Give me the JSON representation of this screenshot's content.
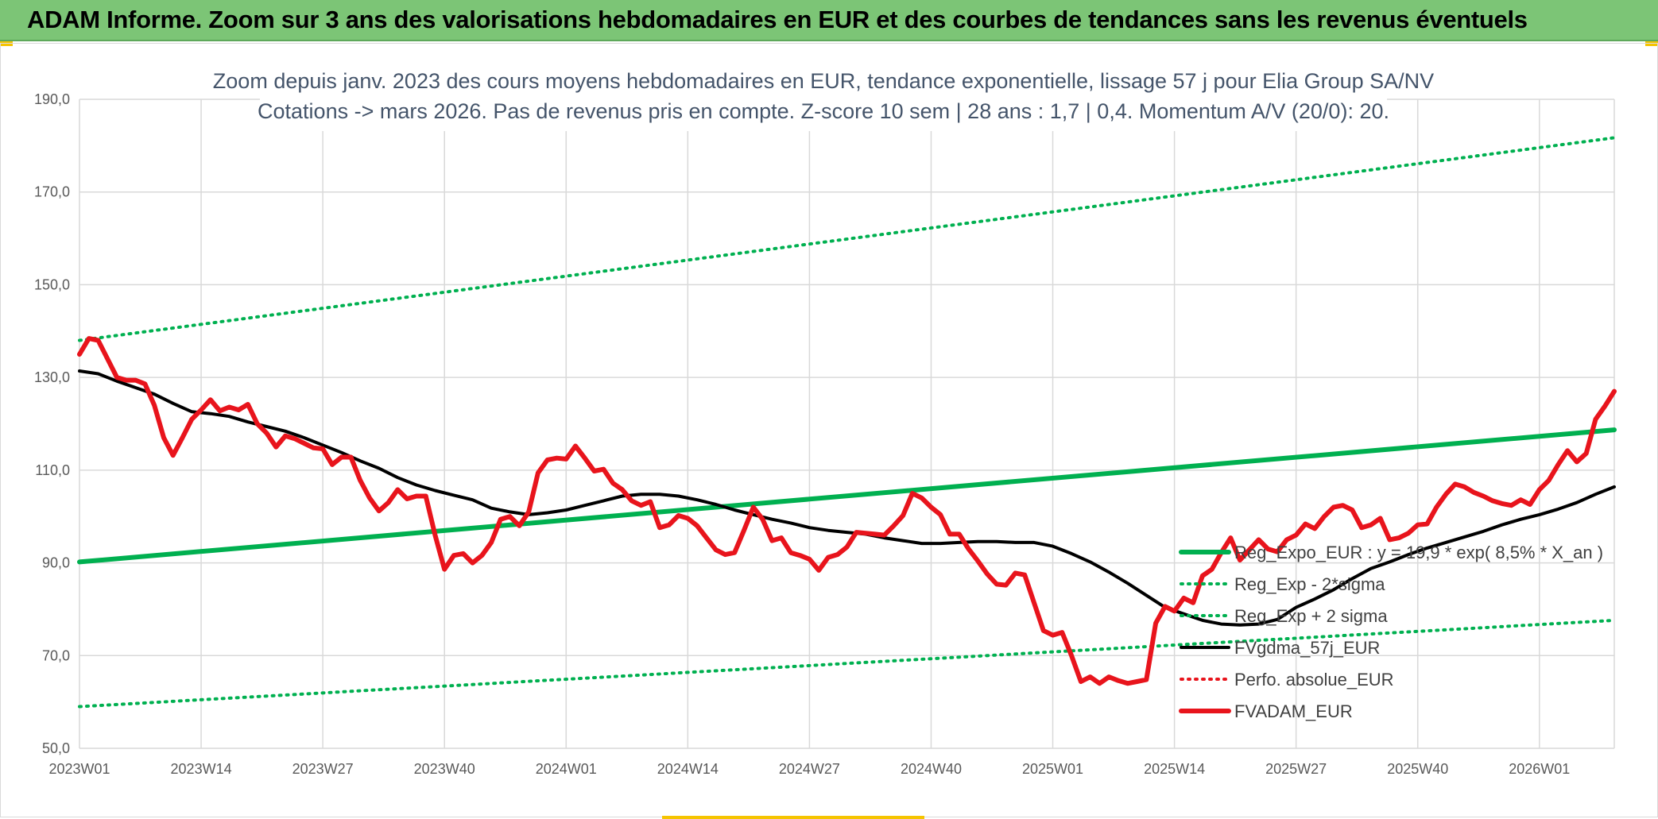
{
  "header": {
    "title": "ADAM Informe. Zoom sur 3 ans des valorisations hebdomadaires en EUR et des courbes de tendances sans les revenus éventuels"
  },
  "colors": {
    "header_bg": "#7cc576",
    "trend_green": "#00b050",
    "smooth_black": "#000000",
    "price_red": "#e8141c",
    "grid": "#d9d9d9",
    "accent_yellow": "#f5c400"
  },
  "chart_data": {
    "type": "line",
    "title_lines": [
      "Zoom depuis janv. 2023 des cours moyens hebdomadaires en EUR, tendance exponentielle, lissage 57 j pour Elia Group SA/NV",
      "Cotations -> mars 2026. Pas de revenus pris en compte. Z-score 10 sem | 28 ans : 1,7 | 0,4. Momentum A/V (20/0): 20."
    ],
    "x_tick_labels": [
      "2023W01",
      "2023W14",
      "2023W27",
      "2023W40",
      "2024W01",
      "2024W14",
      "2024W27",
      "2024W40",
      "2025W01",
      "2025W14",
      "2025W27",
      "2025W40",
      "2026W01"
    ],
    "y_tick_labels": [
      "190,0",
      "170,0",
      "150,0",
      "130,0",
      "110,0",
      "90,0",
      "70,0",
      "50,0"
    ],
    "ylim": [
      50,
      190
    ],
    "y_ticks": [
      50,
      70,
      90,
      110,
      130,
      150,
      170,
      190
    ],
    "x_unit": "week index from 2023W01",
    "x_range": [
      0,
      164
    ],
    "grid": true,
    "legend_position": "bottom-right",
    "series": [
      {
        "name": "Reg_Expo_EUR : y = 19,9 * exp( 8,5% *  X_an )",
        "style": "solid-thick",
        "color": "#00b050",
        "points": [
          [
            0,
            90.2
          ],
          [
            164,
            118.7
          ]
        ]
      },
      {
        "name": "Reg_Exp - 2*sigma",
        "style": "dotted",
        "color": "#00b050",
        "points": [
          [
            0,
            59.0
          ],
          [
            164,
            77.6
          ]
        ]
      },
      {
        "name": "Reg_Exp + 2 sigma",
        "style": "dotted",
        "color": "#00b050",
        "points": [
          [
            0,
            138.0
          ],
          [
            164,
            181.7
          ]
        ]
      },
      {
        "name": "FVgdma_57j_EUR",
        "style": "solid",
        "color": "#000000",
        "points": [
          [
            0,
            131.4
          ],
          [
            2,
            130.8
          ],
          [
            4,
            129.2
          ],
          [
            6,
            127.8
          ],
          [
            8,
            126.4
          ],
          [
            10,
            124.4
          ],
          [
            12,
            122.6
          ],
          [
            14,
            122.2
          ],
          [
            16,
            121.6
          ],
          [
            18,
            120.4
          ],
          [
            20,
            119.4
          ],
          [
            22,
            118.4
          ],
          [
            24,
            117.0
          ],
          [
            26,
            115.4
          ],
          [
            28,
            113.8
          ],
          [
            30,
            112.0
          ],
          [
            32,
            110.4
          ],
          [
            34,
            108.4
          ],
          [
            36,
            106.8
          ],
          [
            38,
            105.6
          ],
          [
            40,
            104.6
          ],
          [
            42,
            103.6
          ],
          [
            44,
            101.8
          ],
          [
            46,
            101.0
          ],
          [
            48,
            100.4
          ],
          [
            50,
            100.8
          ],
          [
            52,
            101.4
          ],
          [
            54,
            102.4
          ],
          [
            56,
            103.4
          ],
          [
            58,
            104.4
          ],
          [
            60,
            104.8
          ],
          [
            62,
            104.8
          ],
          [
            64,
            104.4
          ],
          [
            66,
            103.6
          ],
          [
            68,
            102.6
          ],
          [
            70,
            101.4
          ],
          [
            72,
            100.4
          ],
          [
            74,
            99.4
          ],
          [
            76,
            98.6
          ],
          [
            78,
            97.6
          ],
          [
            80,
            97.0
          ],
          [
            82,
            96.6
          ],
          [
            84,
            96.2
          ],
          [
            86,
            95.4
          ],
          [
            88,
            94.8
          ],
          [
            90,
            94.2
          ],
          [
            92,
            94.2
          ],
          [
            94,
            94.4
          ],
          [
            96,
            94.6
          ],
          [
            98,
            94.6
          ],
          [
            100,
            94.4
          ],
          [
            102,
            94.4
          ],
          [
            104,
            93.6
          ],
          [
            106,
            92.0
          ],
          [
            108,
            90.2
          ],
          [
            110,
            88.0
          ],
          [
            112,
            85.6
          ],
          [
            114,
            83.0
          ],
          [
            116,
            80.4
          ],
          [
            118,
            79.0
          ],
          [
            120,
            77.6
          ],
          [
            122,
            76.8
          ],
          [
            124,
            76.6
          ],
          [
            126,
            76.8
          ],
          [
            128,
            77.8
          ],
          [
            130,
            80.4
          ],
          [
            132,
            82.2
          ],
          [
            134,
            84.2
          ],
          [
            136,
            86.6
          ],
          [
            138,
            88.8
          ],
          [
            140,
            90.2
          ],
          [
            142,
            91.8
          ],
          [
            144,
            93.2
          ],
          [
            146,
            94.4
          ],
          [
            148,
            95.6
          ],
          [
            150,
            96.8
          ],
          [
            152,
            98.2
          ],
          [
            154,
            99.4
          ],
          [
            156,
            100.4
          ],
          [
            158,
            101.6
          ],
          [
            160,
            103.0
          ],
          [
            162,
            104.8
          ],
          [
            164,
            106.4
          ]
        ]
      },
      {
        "name": "Perfo. absolue_EUR",
        "style": "dotted",
        "color": "#e8141c",
        "points": []
      },
      {
        "name": "FVADAM_EUR",
        "style": "solid-thick",
        "color": "#e8141c",
        "points": [
          [
            0,
            135.0
          ],
          [
            1,
            138.4
          ],
          [
            2,
            138.0
          ],
          [
            3,
            134.0
          ],
          [
            4,
            130.0
          ],
          [
            5,
            129.4
          ],
          [
            6,
            129.4
          ],
          [
            7,
            128.6
          ],
          [
            8,
            124.0
          ],
          [
            9,
            117.0
          ],
          [
            10,
            113.2
          ],
          [
            11,
            117.0
          ],
          [
            12,
            121.0
          ],
          [
            13,
            123.0
          ],
          [
            14,
            125.2
          ],
          [
            15,
            122.8
          ],
          [
            16,
            123.6
          ],
          [
            17,
            123.0
          ],
          [
            18,
            124.2
          ],
          [
            19,
            120.0
          ],
          [
            20,
            118.0
          ],
          [
            21,
            115.0
          ],
          [
            22,
            117.4
          ],
          [
            23,
            116.8
          ],
          [
            24,
            115.8
          ],
          [
            25,
            114.8
          ],
          [
            26,
            114.6
          ],
          [
            27,
            111.2
          ],
          [
            28,
            112.8
          ],
          [
            29,
            112.8
          ],
          [
            30,
            107.8
          ],
          [
            31,
            104.0
          ],
          [
            32,
            101.2
          ],
          [
            33,
            103.0
          ],
          [
            34,
            105.8
          ],
          [
            35,
            103.8
          ],
          [
            36,
            104.4
          ],
          [
            37,
            104.4
          ],
          [
            38,
            96.0
          ],
          [
            39,
            88.6
          ],
          [
            40,
            91.6
          ],
          [
            41,
            92.0
          ],
          [
            42,
            90.0
          ],
          [
            43,
            91.6
          ],
          [
            44,
            94.4
          ],
          [
            45,
            99.4
          ],
          [
            46,
            100.0
          ],
          [
            47,
            98.0
          ],
          [
            48,
            101.0
          ],
          [
            49,
            109.4
          ],
          [
            50,
            112.2
          ],
          [
            51,
            112.6
          ],
          [
            52,
            112.4
          ],
          [
            53,
            115.2
          ],
          [
            54,
            112.6
          ],
          [
            55,
            109.8
          ],
          [
            56,
            110.2
          ],
          [
            57,
            107.2
          ],
          [
            58,
            105.8
          ],
          [
            59,
            103.4
          ],
          [
            60,
            102.4
          ],
          [
            61,
            103.2
          ],
          [
            62,
            97.6
          ],
          [
            63,
            98.2
          ],
          [
            64,
            100.2
          ],
          [
            65,
            99.6
          ],
          [
            66,
            98.0
          ],
          [
            67,
            95.4
          ],
          [
            68,
            92.8
          ],
          [
            69,
            91.8
          ],
          [
            70,
            92.2
          ],
          [
            71,
            97.0
          ],
          [
            72,
            102.0
          ],
          [
            73,
            99.4
          ],
          [
            74,
            94.8
          ],
          [
            75,
            95.4
          ],
          [
            76,
            92.2
          ],
          [
            77,
            91.6
          ],
          [
            78,
            90.8
          ],
          [
            79,
            88.4
          ],
          [
            80,
            91.2
          ],
          [
            81,
            91.8
          ],
          [
            82,
            93.4
          ],
          [
            83,
            96.6
          ],
          [
            84,
            96.4
          ],
          [
            85,
            96.2
          ],
          [
            86,
            96.0
          ],
          [
            87,
            98.0
          ],
          [
            88,
            100.2
          ],
          [
            89,
            105.0
          ],
          [
            90,
            104.0
          ],
          [
            91,
            102.0
          ],
          [
            92,
            100.4
          ],
          [
            93,
            96.2
          ],
          [
            94,
            96.2
          ],
          [
            95,
            93.0
          ],
          [
            96,
            90.4
          ],
          [
            97,
            87.6
          ],
          [
            98,
            85.4
          ],
          [
            99,
            85.2
          ],
          [
            100,
            87.8
          ],
          [
            101,
            87.4
          ],
          [
            102,
            81.4
          ],
          [
            103,
            75.4
          ],
          [
            104,
            74.4
          ],
          [
            105,
            75.0
          ],
          [
            106,
            70.0
          ],
          [
            107,
            64.4
          ],
          [
            108,
            65.4
          ],
          [
            109,
            64.0
          ],
          [
            110,
            65.4
          ],
          [
            111,
            64.6
          ],
          [
            112,
            64.0
          ],
          [
            113,
            64.4
          ],
          [
            114,
            64.8
          ],
          [
            115,
            77.0
          ],
          [
            116,
            80.6
          ],
          [
            117,
            79.6
          ],
          [
            118,
            82.4
          ],
          [
            119,
            81.4
          ],
          [
            120,
            87.2
          ],
          [
            121,
            88.6
          ],
          [
            122,
            92.2
          ],
          [
            123,
            95.4
          ],
          [
            124,
            90.6
          ],
          [
            125,
            92.8
          ],
          [
            126,
            95.0
          ],
          [
            127,
            93.0
          ],
          [
            128,
            92.4
          ],
          [
            129,
            95.0
          ],
          [
            130,
            96.0
          ],
          [
            131,
            98.4
          ],
          [
            132,
            97.4
          ],
          [
            133,
            100.0
          ],
          [
            134,
            102.0
          ],
          [
            135,
            102.4
          ],
          [
            136,
            101.4
          ],
          [
            137,
            97.6
          ],
          [
            138,
            98.2
          ],
          [
            139,
            99.6
          ],
          [
            140,
            95.0
          ],
          [
            141,
            95.4
          ],
          [
            142,
            96.4
          ],
          [
            143,
            98.2
          ],
          [
            144,
            98.4
          ],
          [
            145,
            102.0
          ],
          [
            146,
            104.8
          ],
          [
            147,
            107.0
          ],
          [
            148,
            106.4
          ],
          [
            149,
            105.2
          ],
          [
            150,
            104.4
          ],
          [
            151,
            103.4
          ],
          [
            152,
            102.8
          ],
          [
            153,
            102.4
          ],
          [
            154,
            103.6
          ],
          [
            155,
            102.6
          ],
          [
            156,
            105.8
          ],
          [
            157,
            107.8
          ],
          [
            158,
            111.2
          ],
          [
            159,
            114.2
          ],
          [
            160,
            111.8
          ],
          [
            161,
            113.6
          ],
          [
            162,
            121.0
          ],
          [
            163,
            123.8
          ],
          [
            164,
            127.0
          ]
        ]
      }
    ]
  }
}
